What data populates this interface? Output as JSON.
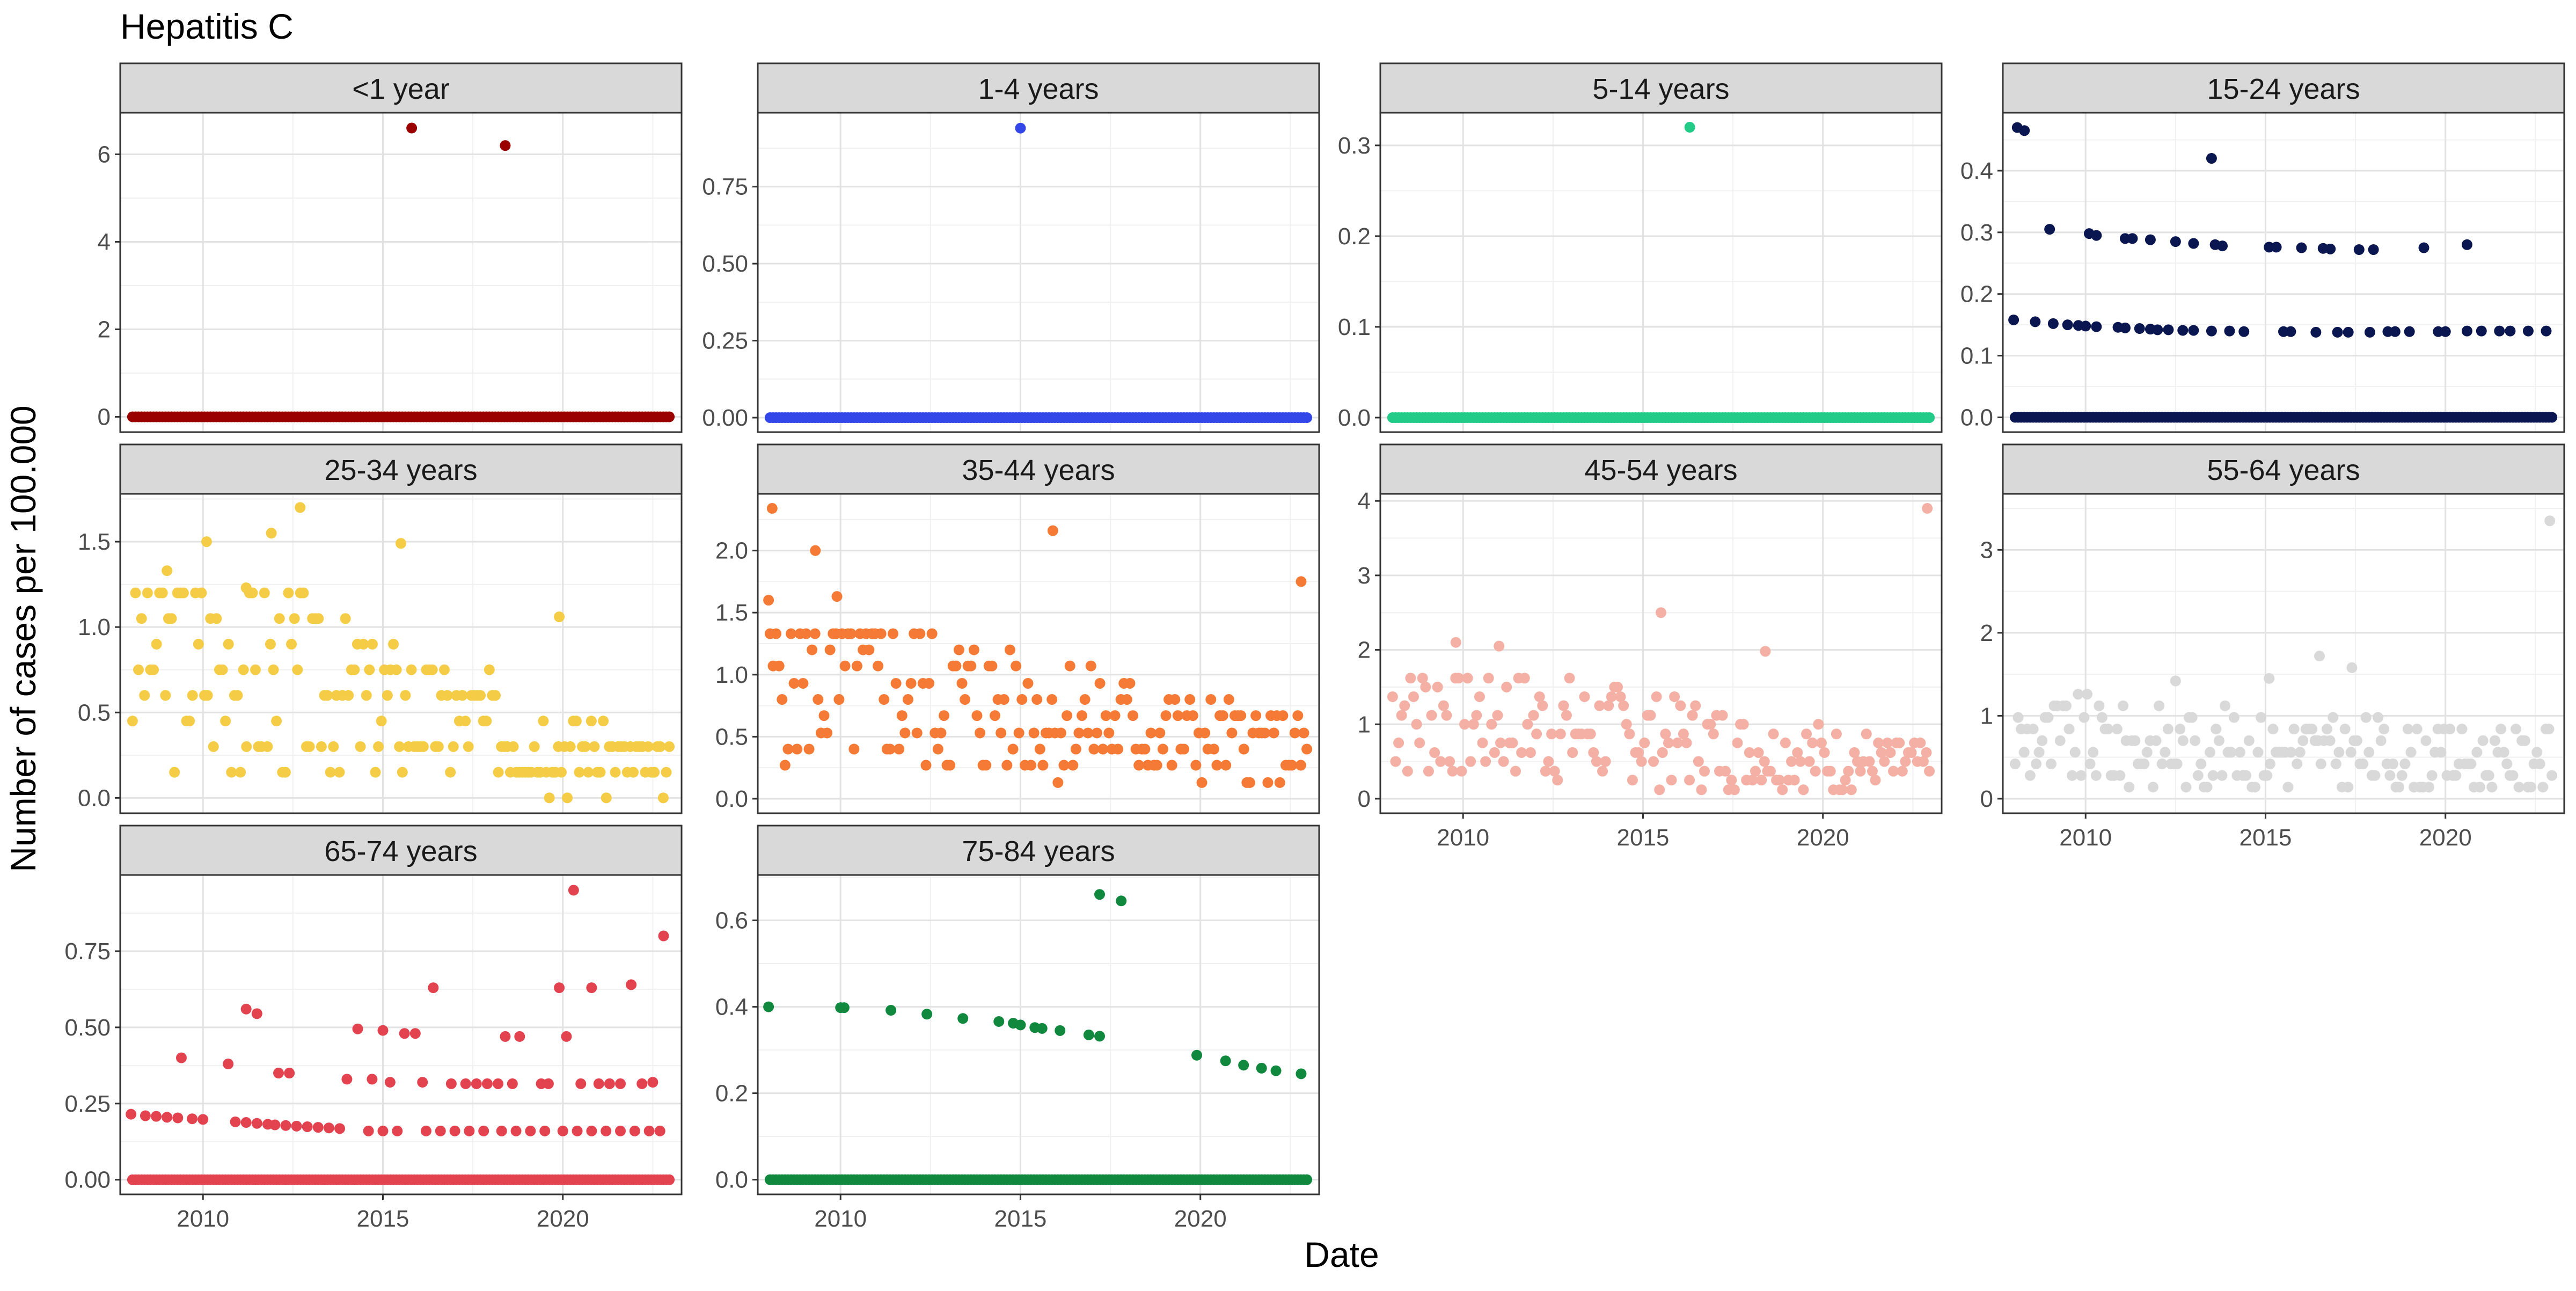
{
  "chart_data": {
    "type": "scatter",
    "layout": "facet-grid 3 rows x 4 cols",
    "title": "Hepatitis C",
    "xlabel": "Date",
    "ylabel": "Number of cases per 100.000",
    "x_ticks": [
      2010,
      2015,
      2020
    ],
    "x_range": [
      2007.7,
      2023.3
    ],
    "grid": true,
    "sampling": "monthly, 2008-01 to 2022-12",
    "panels": [
      {
        "label": "<1 year",
        "color": "#9B0000",
        "ylim": [
          -0.35,
          6.95
        ],
        "y_ticks": [
          0,
          2,
          4,
          6
        ],
        "y_tick_labels": [
          "0",
          "2",
          "4",
          "6"
        ],
        "nonzero_points": [
          [
            2015.8,
            6.6
          ],
          [
            2018.4,
            6.2
          ]
        ]
      },
      {
        "label": "1-4 years",
        "color": "#3347E8",
        "ylim": [
          -0.047,
          0.99
        ],
        "y_ticks": [
          0,
          0.25,
          0.5,
          0.75
        ],
        "y_tick_labels": [
          "0.00",
          "0.25",
          "0.50",
          "0.75"
        ],
        "nonzero_points": [
          [
            2015.0,
            0.94
          ]
        ]
      },
      {
        "label": "5-14 years",
        "color": "#22CC88",
        "ylim": [
          -0.016,
          0.336
        ],
        "y_ticks": [
          0,
          0.1,
          0.2,
          0.3
        ],
        "y_tick_labels": [
          "0.0",
          "0.1",
          "0.2",
          "0.3"
        ],
        "nonzero_points": [
          [
            2016.3,
            0.32
          ]
        ]
      },
      {
        "label": "15-24 years",
        "color": "#0A1650",
        "ylim": [
          -0.024,
          0.494
        ],
        "y_ticks": [
          0,
          0.1,
          0.2,
          0.3,
          0.4
        ],
        "y_tick_labels": [
          "0.0",
          "0.1",
          "0.2",
          "0.3",
          "0.4"
        ],
        "nonzero_points": [
          [
            2008.1,
            0.47
          ],
          [
            2008.3,
            0.465
          ],
          [
            2013.5,
            0.42
          ],
          [
            2009.0,
            0.305
          ],
          [
            2010.1,
            0.298
          ],
          [
            2010.3,
            0.295
          ],
          [
            2011.1,
            0.29
          ],
          [
            2011.3,
            0.29
          ],
          [
            2011.8,
            0.288
          ],
          [
            2012.5,
            0.285
          ],
          [
            2013.0,
            0.282
          ],
          [
            2013.6,
            0.28
          ],
          [
            2013.8,
            0.278
          ],
          [
            2015.1,
            0.276
          ],
          [
            2015.3,
            0.276
          ],
          [
            2016.0,
            0.275
          ],
          [
            2016.6,
            0.274
          ],
          [
            2016.8,
            0.273
          ],
          [
            2017.6,
            0.272
          ],
          [
            2018.0,
            0.272
          ],
          [
            2019.4,
            0.275
          ],
          [
            2020.6,
            0.28
          ],
          [
            2008.0,
            0.158
          ],
          [
            2008.6,
            0.155
          ],
          [
            2009.1,
            0.152
          ],
          [
            2009.5,
            0.15
          ],
          [
            2009.8,
            0.149
          ],
          [
            2010.0,
            0.148
          ],
          [
            2010.3,
            0.147
          ],
          [
            2010.9,
            0.146
          ],
          [
            2011.1,
            0.145
          ],
          [
            2011.5,
            0.144
          ],
          [
            2011.8,
            0.143
          ],
          [
            2012.0,
            0.142
          ],
          [
            2012.3,
            0.142
          ],
          [
            2012.7,
            0.141
          ],
          [
            2013.0,
            0.141
          ],
          [
            2013.5,
            0.14
          ],
          [
            2014.0,
            0.14
          ],
          [
            2014.4,
            0.139
          ],
          [
            2015.5,
            0.139
          ],
          [
            2015.7,
            0.139
          ],
          [
            2016.4,
            0.138
          ],
          [
            2017.0,
            0.138
          ],
          [
            2017.3,
            0.138
          ],
          [
            2017.9,
            0.138
          ],
          [
            2018.4,
            0.139
          ],
          [
            2018.6,
            0.139
          ],
          [
            2019.0,
            0.139
          ],
          [
            2019.8,
            0.139
          ],
          [
            2020.0,
            0.139
          ],
          [
            2020.6,
            0.14
          ],
          [
            2021.0,
            0.14
          ],
          [
            2021.5,
            0.14
          ],
          [
            2021.8,
            0.14
          ],
          [
            2022.3,
            0.14
          ],
          [
            2022.8,
            0.14
          ]
        ]
      },
      {
        "label": "25-34 years",
        "color": "#F5CC45",
        "ylim": [
          -0.09,
          1.78
        ],
        "y_ticks": [
          0,
          0.5,
          1,
          1.5
        ],
        "y_tick_labels": [
          "0.0",
          "0.5",
          "1.0",
          "1.5"
        ],
        "series_seed": 3,
        "value_levels": [
          0,
          0.15,
          0.3,
          0.45,
          0.6,
          0.75,
          0.9,
          1.05,
          1.2
        ],
        "trend": [
          0.9,
          0.15
        ],
        "ceiling": 1.3,
        "nonzero_points": [
          [
            2012.7,
            1.7
          ],
          [
            2011.9,
            1.55
          ],
          [
            2010.1,
            1.5
          ],
          [
            2015.5,
            1.49
          ],
          [
            2009.0,
            1.33
          ],
          [
            2011.2,
            1.23
          ],
          [
            2019.9,
            1.06
          ]
        ]
      },
      {
        "label": "35-44 years",
        "color": "#F47A35",
        "ylim": [
          -0.117,
          2.457
        ],
        "y_ticks": [
          0,
          0.5,
          1,
          1.5,
          2
        ],
        "y_tick_labels": [
          "0.0",
          "0.5",
          "1.0",
          "1.5",
          "2.0"
        ],
        "series_seed": 5,
        "value_levels": [
          0,
          0.13,
          0.27,
          0.4,
          0.53,
          0.67,
          0.8,
          0.93,
          1.07,
          1.2,
          1.33
        ],
        "trend": [
          1.0,
          0.35
        ],
        "ceiling": 1.4,
        "nonzero_points": [
          [
            2008.1,
            2.34
          ],
          [
            2009.3,
            2.0
          ],
          [
            2015.9,
            2.16
          ],
          [
            2008.0,
            1.6
          ],
          [
            2009.9,
            1.63
          ],
          [
            2022.8,
            1.75
          ]
        ]
      },
      {
        "label": "45-54 years",
        "color": "#F4B0A4",
        "ylim": [
          -0.195,
          4.095
        ],
        "y_ticks": [
          0,
          1,
          2,
          3,
          4
        ],
        "y_tick_labels": [
          "0",
          "1",
          "2",
          "3",
          "4"
        ],
        "series_seed": 7,
        "value_levels": [
          0,
          0.12,
          0.25,
          0.37,
          0.5,
          0.62,
          0.75,
          0.87,
          1.0,
          1.12,
          1.25,
          1.37,
          1.5,
          1.62
        ],
        "trend": [
          1.2,
          0.4
        ],
        "ceiling": 1.8,
        "nonzero_points": [
          [
            2009.8,
            2.1
          ],
          [
            2011.0,
            2.05
          ],
          [
            2015.5,
            2.5
          ],
          [
            2018.4,
            1.98
          ],
          [
            2022.9,
            3.9
          ]
        ]
      },
      {
        "label": "55-64 years",
        "color": "#D9D9D9",
        "ylim": [
          -0.175,
          3.675
        ],
        "y_ticks": [
          0,
          1,
          2,
          3
        ],
        "y_tick_labels": [
          "0",
          "1",
          "2",
          "3"
        ],
        "series_seed": 9,
        "value_levels": [
          0,
          0.14,
          0.28,
          0.42,
          0.56,
          0.7,
          0.84,
          0.98,
          1.12,
          1.26
        ],
        "trend": [
          0.7,
          0.45
        ],
        "ceiling": 1.3,
        "nonzero_points": [
          [
            2012.5,
            1.42
          ],
          [
            2015.1,
            1.45
          ],
          [
            2016.5,
            1.72
          ],
          [
            2017.4,
            1.58
          ],
          [
            2022.9,
            3.35
          ]
        ]
      },
      {
        "label": "65-74 years",
        "color": "#E2434F",
        "ylim": [
          -0.048,
          1.0
        ],
        "y_ticks": [
          0,
          0.25,
          0.5,
          0.75
        ],
        "y_tick_labels": [
          "0.00",
          "0.25",
          "0.50",
          "0.75"
        ],
        "nonzero_points": [
          [
            2008.0,
            0.215
          ],
          [
            2008.4,
            0.21
          ],
          [
            2008.7,
            0.208
          ],
          [
            2009.0,
            0.205
          ],
          [
            2009.3,
            0.203
          ],
          [
            2009.7,
            0.2
          ],
          [
            2010.0,
            0.198
          ],
          [
            2010.9,
            0.19
          ],
          [
            2011.2,
            0.188
          ],
          [
            2011.5,
            0.185
          ],
          [
            2011.8,
            0.182
          ],
          [
            2012.0,
            0.18
          ],
          [
            2012.3,
            0.178
          ],
          [
            2012.6,
            0.176
          ],
          [
            2012.9,
            0.174
          ],
          [
            2013.2,
            0.172
          ],
          [
            2013.5,
            0.17
          ],
          [
            2013.8,
            0.168
          ],
          [
            2009.4,
            0.4
          ],
          [
            2010.7,
            0.38
          ],
          [
            2011.2,
            0.56
          ],
          [
            2011.5,
            0.545
          ],
          [
            2012.1,
            0.35
          ],
          [
            2012.4,
            0.35
          ],
          [
            2014.0,
            0.33
          ],
          [
            2014.3,
            0.495
          ],
          [
            2014.7,
            0.33
          ],
          [
            2015.0,
            0.49
          ],
          [
            2015.2,
            0.32
          ],
          [
            2015.6,
            0.48
          ],
          [
            2015.9,
            0.48
          ],
          [
            2016.1,
            0.32
          ],
          [
            2016.4,
            0.63
          ],
          [
            2016.9,
            0.315
          ],
          [
            2017.3,
            0.315
          ],
          [
            2017.6,
            0.315
          ],
          [
            2017.9,
            0.315
          ],
          [
            2018.2,
            0.315
          ],
          [
            2018.6,
            0.315
          ],
          [
            2018.4,
            0.47
          ],
          [
            2018.8,
            0.47
          ],
          [
            2019.4,
            0.315
          ],
          [
            2019.6,
            0.315
          ],
          [
            2019.9,
            0.63
          ],
          [
            2020.1,
            0.47
          ],
          [
            2020.3,
            0.95
          ],
          [
            2020.5,
            0.315
          ],
          [
            2020.8,
            0.63
          ],
          [
            2021.0,
            0.315
          ],
          [
            2021.3,
            0.315
          ],
          [
            2021.6,
            0.315
          ],
          [
            2021.9,
            0.64
          ],
          [
            2022.2,
            0.315
          ],
          [
            2022.5,
            0.32
          ],
          [
            2022.8,
            0.8
          ],
          [
            2015.0,
            0.16
          ],
          [
            2015.4,
            0.16
          ],
          [
            2016.2,
            0.16
          ],
          [
            2016.6,
            0.16
          ],
          [
            2017.0,
            0.16
          ],
          [
            2017.4,
            0.16
          ],
          [
            2017.8,
            0.16
          ],
          [
            2018.3,
            0.16
          ],
          [
            2018.7,
            0.16
          ],
          [
            2019.1,
            0.16
          ],
          [
            2019.5,
            0.16
          ],
          [
            2020.0,
            0.16
          ],
          [
            2020.4,
            0.16
          ],
          [
            2020.8,
            0.16
          ],
          [
            2021.2,
            0.16
          ],
          [
            2021.6,
            0.16
          ],
          [
            2022.0,
            0.16
          ],
          [
            2022.4,
            0.16
          ],
          [
            2022.7,
            0.16
          ],
          [
            2014.6,
            0.16
          ]
        ]
      },
      {
        "label": "75-84 years",
        "color": "#10893E",
        "ylim": [
          -0.034,
          0.705
        ],
        "y_ticks": [
          0,
          0.2,
          0.4,
          0.6
        ],
        "y_tick_labels": [
          "0.0",
          "0.2",
          "0.4",
          "0.6"
        ],
        "nonzero_points": [
          [
            2008.0,
            0.4
          ],
          [
            2010.0,
            0.398
          ],
          [
            2010.1,
            0.398
          ],
          [
            2011.4,
            0.392
          ],
          [
            2012.4,
            0.383
          ],
          [
            2013.4,
            0.373
          ],
          [
            2014.4,
            0.366
          ],
          [
            2014.8,
            0.362
          ],
          [
            2015.0,
            0.358
          ],
          [
            2015.4,
            0.352
          ],
          [
            2015.6,
            0.35
          ],
          [
            2016.1,
            0.345
          ],
          [
            2016.9,
            0.335
          ],
          [
            2017.2,
            0.332
          ],
          [
            2017.2,
            0.66
          ],
          [
            2017.8,
            0.645
          ],
          [
            2019.9,
            0.288
          ],
          [
            2020.7,
            0.275
          ],
          [
            2021.2,
            0.265
          ],
          [
            2021.7,
            0.258
          ],
          [
            2022.1,
            0.252
          ],
          [
            2022.8,
            0.245
          ]
        ]
      }
    ]
  }
}
